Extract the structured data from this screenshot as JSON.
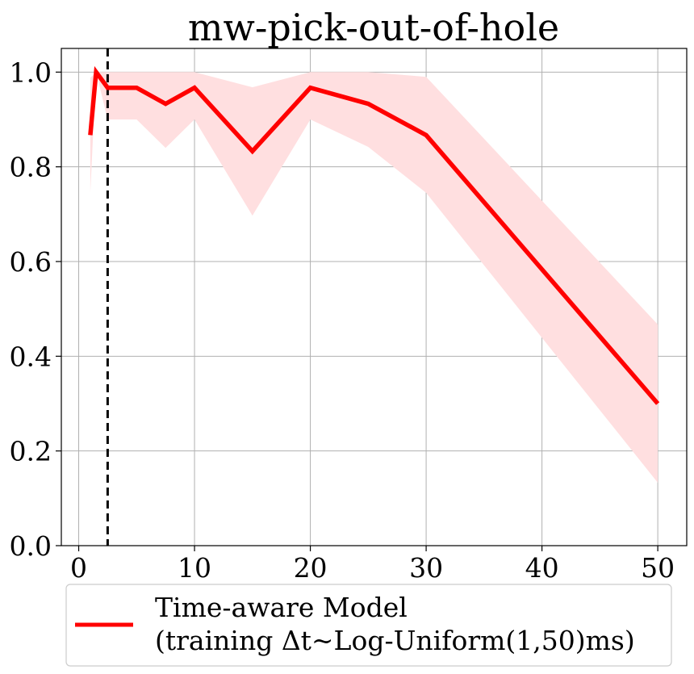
{
  "chart_data": {
    "type": "line",
    "title": "mw-pick-out-of-hole",
    "xlabel": "",
    "ylabel": "",
    "xlim": [
      -1.5,
      52.5
    ],
    "ylim": [
      0.0,
      1.05
    ],
    "x_ticks": [
      0,
      10,
      20,
      30,
      40,
      50
    ],
    "x_tick_labels": [
      "0",
      "10",
      "20",
      "30",
      "40",
      "50"
    ],
    "y_ticks": [
      0.0,
      0.2,
      0.4,
      0.6,
      0.8,
      1.0
    ],
    "y_tick_labels": [
      "0.0",
      "0.2",
      "0.4",
      "0.6",
      "0.8",
      "1.0"
    ],
    "grid": true,
    "legend_position": "below",
    "vertical_line": {
      "x": 2.5,
      "style": "dashed",
      "color": "#000000"
    },
    "series": [
      {
        "name": "Time-aware Model",
        "name_line2": "(training Δt~Log-Uniform(1,50)ms)",
        "color": "#ff0000",
        "band_color": "#ffdfe0",
        "x": [
          1,
          1.5,
          2.5,
          5,
          7.5,
          10,
          15,
          20,
          25,
          30,
          50
        ],
        "y": [
          0.867,
          1.0,
          0.967,
          0.967,
          0.933,
          0.967,
          0.833,
          0.967,
          0.933,
          0.867,
          0.3
        ],
        "lower": [
          0.745,
          1.0,
          0.9,
          0.9,
          0.84,
          0.9,
          0.697,
          0.9,
          0.842,
          0.745,
          0.133
        ],
        "upper": [
          0.988,
          1.0,
          1.0,
          1.0,
          1.0,
          1.0,
          0.968,
          1.0,
          1.0,
          0.99,
          0.467
        ]
      }
    ]
  }
}
